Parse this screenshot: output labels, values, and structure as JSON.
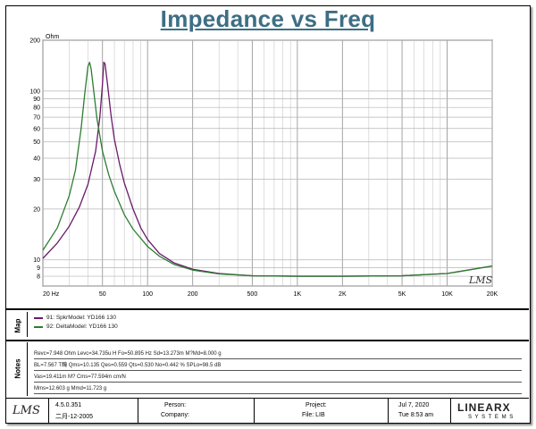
{
  "title": "Impedance vs Freq",
  "chart_data": {
    "type": "line",
    "title": "Impedance vs Freq",
    "xscale": "log",
    "yscale": "log",
    "xlim": [
      20,
      20000
    ],
    "ylim": [
      7,
      200
    ],
    "ylabel": "Ohm",
    "x_tick_labels": [
      {
        "v": 20,
        "t": "20 Hz"
      },
      {
        "v": 50,
        "t": "50"
      },
      {
        "v": 100,
        "t": "100"
      },
      {
        "v": 200,
        "t": "200"
      },
      {
        "v": 500,
        "t": "500"
      },
      {
        "v": 1000,
        "t": "1K"
      },
      {
        "v": 2000,
        "t": "2K"
      },
      {
        "v": 5000,
        "t": "5K"
      },
      {
        "v": 10000,
        "t": "10K"
      },
      {
        "v": 20000,
        "t": "20K"
      }
    ],
    "y_tick_labels": [
      {
        "v": 200,
        "t": "200"
      },
      {
        "v": 100,
        "t": "100"
      },
      {
        "v": 90,
        "t": "90"
      },
      {
        "v": 80,
        "t": "80"
      },
      {
        "v": 70,
        "t": "70"
      },
      {
        "v": 60,
        "t": "60"
      },
      {
        "v": 50,
        "t": "50"
      },
      {
        "v": 40,
        "t": "40"
      },
      {
        "v": 30,
        "t": "30"
      },
      {
        "v": 20,
        "t": "20"
      },
      {
        "v": 10,
        "t": "10"
      },
      {
        "v": 9,
        "t": "9"
      },
      {
        "v": 8,
        "t": "8"
      }
    ],
    "grid": true,
    "series": [
      {
        "name": "91: SpkrModel: YD166   130",
        "color": "#6a1a6a",
        "x": [
          20,
          25,
          30,
          35,
          40,
          45,
          48,
          50,
          51,
          52,
          54,
          57,
          60,
          65,
          70,
          80,
          90,
          100,
          120,
          150,
          200,
          300,
          500,
          1000,
          2000,
          5000,
          10000,
          20000
        ],
        "y": [
          10.2,
          12.6,
          15.8,
          20.5,
          28,
          44,
          70,
          110,
          148,
          145,
          110,
          72,
          52,
          37,
          28.5,
          20,
          15.5,
          13.2,
          10.9,
          9.6,
          8.8,
          8.3,
          8.05,
          8.0,
          8.0,
          8.05,
          8.3,
          9.2
        ]
      },
      {
        "name": "92: DeltaModel: YD166   130",
        "color": "#2e7d32",
        "x": [
          20,
          25,
          30,
          33,
          36,
          38,
          40,
          41,
          42,
          44,
          46,
          50,
          55,
          60,
          70,
          80,
          100,
          120,
          150,
          200,
          300,
          500,
          1000,
          2000,
          5000,
          10000,
          20000
        ],
        "y": [
          11.4,
          15.5,
          24,
          34,
          60,
          95,
          140,
          148,
          135,
          95,
          68,
          44,
          32,
          25.5,
          18.5,
          15.2,
          12,
          10.5,
          9.4,
          8.7,
          8.25,
          8.05,
          8.0,
          8.0,
          8.05,
          8.3,
          9.2
        ]
      }
    ]
  },
  "sidebar": {
    "map_label": "Map",
    "notes_label": "Notes"
  },
  "legend": [
    {
      "text": "91: SpkrModel: YD166   130",
      "color": "#6a1a6a"
    },
    {
      "text": "92: DeltaModel: YD166   130",
      "color": "#2e7d32"
    }
  ],
  "notes": [
    "Revc=7.948 Ohm  Levc=34.735u H  Fo=50.895 Hz  Sd=13.273m M?Md=8.000 g",
    "BL=7.567 T醃  Qms=10.135  Qes=0.559  Qts=0.530  No=0.442 %  SPLo=98.5 dB",
    "Vas=19.411m M?  Cms=77.594m cm/N",
    "Mms=12.603 g  Mmd=11.723 g"
  ],
  "footer": {
    "logo_text": "LMS",
    "version": "4.5.0.351",
    "version_date": "二月-12-2005",
    "person_label": "Person:",
    "company_label": "Company:",
    "project_label": "Project:",
    "file_label": "File: LIB",
    "date": "Jul  7, 2020",
    "time": "Tue  8:53 am",
    "brand": "LINEARX",
    "brand_sub": "S Y S T E M S"
  },
  "watermark": "LMS"
}
